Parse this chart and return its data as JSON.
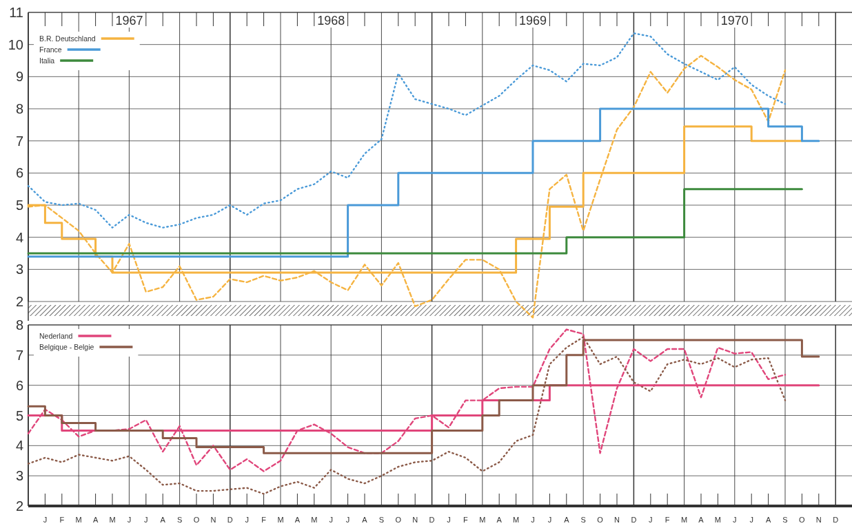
{
  "chart_data": [
    {
      "type": "line",
      "grid": true,
      "legend": "top left",
      "categories": [
        null,
        null,
        null,
        null,
        null,
        null,
        "1967",
        null,
        null,
        null,
        null,
        null,
        null,
        null,
        null,
        null,
        null,
        null,
        "1968",
        null,
        null,
        null,
        null,
        null,
        null,
        null,
        null,
        null,
        null,
        null,
        "1969",
        null,
        null,
        null,
        null,
        null,
        null,
        null,
        null,
        null,
        null,
        null,
        "1970",
        null,
        null,
        null,
        null,
        null,
        null
      ],
      "ylim": [
        1.4,
        11
      ],
      "yticks": [
        2,
        3,
        4,
        5,
        6,
        7,
        8,
        9,
        10,
        11
      ],
      "series": [
        {
          "type": "line",
          "line_style": "dotted",
          "color": "#4a9ad8",
          "values": [
            5.6,
            5.1,
            5.0,
            5.05,
            4.85,
            4.3,
            4.7,
            4.45,
            4.3,
            4.4,
            4.6,
            4.7,
            5.0,
            4.7,
            5.05,
            5.15,
            5.5,
            5.65,
            6.05,
            5.85,
            6.6,
            7.05,
            9.1,
            8.3,
            8.15,
            8.0,
            7.8,
            8.1,
            8.4,
            8.9,
            9.35,
            9.2,
            8.85,
            9.4,
            9.35,
            9.6,
            10.35,
            10.25,
            9.7,
            9.4,
            9.15,
            8.9,
            9.3,
            8.75,
            8.4,
            8.15,
            null,
            null,
            null
          ]
        },
        {
          "type": "line",
          "line_style": "dashed",
          "color": "#f5b340",
          "values": [
            4.95,
            5.0,
            4.6,
            4.2,
            3.5,
            2.9,
            3.8,
            2.3,
            2.45,
            3.1,
            2.05,
            2.15,
            2.7,
            2.6,
            2.8,
            2.65,
            2.75,
            2.95,
            2.6,
            2.35,
            3.15,
            2.5,
            3.2,
            1.85,
            2.05,
            2.7,
            3.3,
            3.3,
            3.0,
            2.0,
            1.5,
            5.5,
            5.95,
            4.2,
            5.8,
            7.35,
            8.05,
            9.15,
            8.5,
            9.25,
            9.65,
            9.3,
            8.9,
            8.6,
            7.6,
            9.2,
            null,
            null,
            null
          ]
        },
        {
          "type": "step",
          "name": "B.R. Deutschland",
          "color": "#f5b340",
          "values": [
            5.0,
            4.45,
            3.95,
            3.95,
            3.4,
            2.9,
            2.9,
            2.9,
            2.9,
            2.9,
            2.9,
            2.9,
            2.9,
            2.9,
            2.9,
            2.9,
            2.9,
            2.9,
            2.9,
            2.9,
            2.9,
            2.9,
            2.9,
            2.9,
            2.9,
            2.9,
            2.9,
            2.9,
            2.9,
            3.95,
            3.95,
            4.95,
            4.95,
            6.0,
            6.0,
            6.0,
            6.0,
            6.0,
            6.0,
            7.45,
            7.45,
            7.45,
            7.45,
            7.0,
            7.0,
            7.0,
            7.0,
            null,
            null
          ]
        },
        {
          "type": "step",
          "name": "France",
          "color": "#4a9ad8",
          "values": [
            3.4,
            3.4,
            3.4,
            3.4,
            3.4,
            3.4,
            3.4,
            3.4,
            3.4,
            3.4,
            3.4,
            3.4,
            3.4,
            3.4,
            3.4,
            3.4,
            3.4,
            3.4,
            3.4,
            5.0,
            5.0,
            5.0,
            6.0,
            6.0,
            6.0,
            6.0,
            6.0,
            6.0,
            6.0,
            6.0,
            7.0,
            7.0,
            7.0,
            7.0,
            8.0,
            8.0,
            8.0,
            8.0,
            8.0,
            8.0,
            8.0,
            8.0,
            8.0,
            8.0,
            7.45,
            7.45,
            7.0,
            7.0,
            null
          ]
        },
        {
          "type": "step",
          "name": "Italia",
          "color": "#3d8a3d",
          "values": [
            3.5,
            3.5,
            3.5,
            3.5,
            3.5,
            3.5,
            3.5,
            3.5,
            3.5,
            3.5,
            3.5,
            3.5,
            3.5,
            3.5,
            3.5,
            3.5,
            3.5,
            3.5,
            3.5,
            3.5,
            3.5,
            3.5,
            3.5,
            3.5,
            3.5,
            3.5,
            3.5,
            3.5,
            3.5,
            3.5,
            3.5,
            3.5,
            4.0,
            4.0,
            4.0,
            4.0,
            4.0,
            4.0,
            4.0,
            5.5,
            5.5,
            5.5,
            5.5,
            5.5,
            5.5,
            5.5,
            5.5,
            null,
            null
          ]
        }
      ]
    },
    {
      "type": "line",
      "grid": true,
      "legend": "top left",
      "categories": [
        null,
        "J",
        "F",
        "M",
        "A",
        "M",
        "J",
        "J",
        "A",
        "S",
        "O",
        "N",
        "D",
        "J",
        "F",
        "M",
        "A",
        "M",
        "J",
        "J",
        "A",
        "S",
        "O",
        "N",
        "D",
        "J",
        "F",
        "M",
        "A",
        "M",
        "J",
        "J",
        "A",
        "S",
        "O",
        "N",
        "D",
        "J",
        "F",
        "M",
        "A",
        "M",
        "J",
        "J",
        "A",
        "S",
        "O",
        "N",
        "D"
      ],
      "ylim": [
        2,
        8
      ],
      "yticks": [
        2,
        3,
        4,
        5,
        6,
        7,
        8
      ],
      "series": [
        {
          "type": "line",
          "line_style": "dashed",
          "color": "#e0457a",
          "values": [
            4.4,
            5.2,
            4.85,
            4.3,
            4.5,
            4.5,
            4.55,
            4.85,
            3.8,
            4.65,
            3.35,
            4.0,
            3.2,
            3.55,
            3.15,
            3.5,
            4.5,
            4.7,
            4.4,
            3.95,
            3.75,
            3.75,
            4.15,
            4.9,
            5.0,
            4.6,
            5.5,
            5.5,
            5.9,
            5.95,
            5.95,
            7.2,
            7.85,
            7.7,
            3.75,
            5.9,
            7.2,
            6.8,
            7.2,
            7.2,
            5.6,
            7.25,
            7.05,
            7.1,
            6.2,
            6.35,
            null,
            null,
            null
          ]
        },
        {
          "type": "line",
          "line_style": "dotted",
          "color": "#8b5a48",
          "values": [
            3.4,
            3.6,
            3.45,
            3.7,
            3.6,
            3.5,
            3.65,
            3.2,
            2.7,
            2.75,
            2.5,
            2.5,
            2.55,
            2.6,
            2.4,
            2.65,
            2.8,
            2.6,
            3.2,
            2.9,
            2.75,
            3.0,
            3.3,
            3.45,
            3.5,
            3.8,
            3.6,
            3.15,
            3.45,
            4.15,
            4.35,
            6.7,
            7.25,
            7.6,
            6.7,
            6.95,
            6.1,
            5.8,
            6.7,
            6.85,
            6.7,
            6.9,
            6.6,
            6.85,
            6.9,
            5.5,
            null,
            null,
            null
          ]
        },
        {
          "type": "step",
          "name": "Nederland",
          "color": "#e0457a",
          "values": [
            5.0,
            5.0,
            4.5,
            4.5,
            4.5,
            4.5,
            4.5,
            4.5,
            4.5,
            4.5,
            4.5,
            4.5,
            4.5,
            4.5,
            4.5,
            4.5,
            4.5,
            4.5,
            4.5,
            4.5,
            4.5,
            4.5,
            4.5,
            4.5,
            5.0,
            5.0,
            5.0,
            5.5,
            5.5,
            5.5,
            5.5,
            6.0,
            6.0,
            6.0,
            6.0,
            6.0,
            6.0,
            6.0,
            6.0,
            6.0,
            6.0,
            6.0,
            6.0,
            6.0,
            6.0,
            6.0,
            6.0,
            6.0,
            null
          ]
        },
        {
          "type": "step",
          "name": "Belgique - Belgie",
          "color": "#8b5a48",
          "values": [
            5.3,
            5.0,
            4.75,
            4.75,
            4.5,
            4.5,
            4.5,
            4.5,
            4.25,
            4.25,
            3.95,
            3.95,
            3.95,
            3.95,
            3.75,
            3.75,
            3.75,
            3.75,
            3.75,
            3.75,
            3.75,
            3.75,
            3.75,
            3.75,
            4.5,
            4.5,
            4.5,
            5.0,
            5.5,
            5.5,
            6.0,
            6.0,
            7.0,
            7.5,
            7.5,
            7.5,
            7.5,
            7.5,
            7.5,
            7.5,
            7.5,
            7.5,
            7.5,
            7.5,
            7.5,
            7.5,
            6.95,
            6.95,
            null
          ]
        }
      ]
    }
  ]
}
